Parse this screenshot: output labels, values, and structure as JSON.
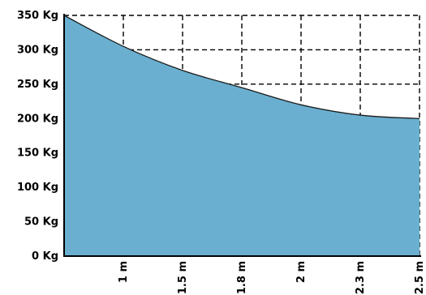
{
  "chart_data": {
    "type": "area",
    "title": "",
    "xlabel": "",
    "ylabel": "",
    "x_ticks": [
      1,
      1.5,
      1.8,
      2,
      2.3,
      2.5
    ],
    "x_tick_labels": [
      "1 m",
      "1.5 m",
      "1.8 m",
      "2 m",
      "2.3 m",
      "2.5 m"
    ],
    "y_ticks": [
      0,
      50,
      100,
      150,
      200,
      250,
      300,
      350
    ],
    "y_tick_labels": [
      "0 Kg",
      "50 Kg",
      "100 Kg",
      "150 Kg",
      "200 Kg",
      "250 Kg",
      "300 Kg",
      "350 Kg"
    ],
    "ylim": [
      0,
      350
    ],
    "grid": true,
    "series": [
      {
        "x": [
          0.5,
          1,
          1.5,
          1.8,
          2,
          2.3,
          2.5
        ],
        "values": [
          350,
          305,
          270,
          245,
          220,
          205,
          200
        ]
      }
    ],
    "colors": {
      "fill": "#6aafd0",
      "line": "#1a1a1a",
      "grid": "#000000",
      "axis": "#000000"
    }
  }
}
